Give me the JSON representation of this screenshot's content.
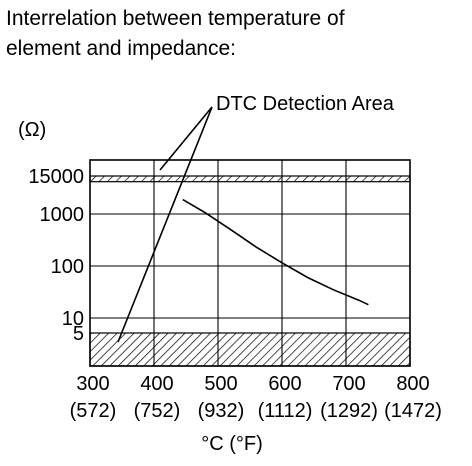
{
  "title": {
    "line1": "Interrelation between temperature of",
    "line2": "element and impedance:"
  },
  "chart_data": {
    "type": "line",
    "ylabel": "(Ω)",
    "xlabel": "°C (°F)",
    "y_scale": "log",
    "yticks": [
      {
        "value": 5,
        "label": "5"
      },
      {
        "value": 10,
        "label": "10"
      },
      {
        "value": 100,
        "label": "100"
      },
      {
        "value": 1000,
        "label": "1000"
      },
      {
        "value": 15000,
        "label": "15000"
      }
    ],
    "xticks": [
      {
        "value": 300,
        "label": "300",
        "sub": "(572)"
      },
      {
        "value": 400,
        "label": "400",
        "sub": "(752)"
      },
      {
        "value": 500,
        "label": "500",
        "sub": "(932)"
      },
      {
        "value": 600,
        "label": "600",
        "sub": "(1112)"
      },
      {
        "value": 700,
        "label": "700",
        "sub": "(1292)"
      },
      {
        "value": 800,
        "label": "800",
        "sub": "(1472)"
      }
    ],
    "xlim": [
      300,
      800
    ],
    "series": [
      {
        "x": [
          445,
          480,
          520,
          560,
          600,
          640,
          680,
          720,
          735
        ],
        "y": [
          2800,
          1100,
          500,
          230,
          115,
          60,
          35,
          22,
          18
        ]
      }
    ],
    "detection_bands": [
      {
        "from": 10000,
        "to": 15000
      },
      {
        "from": 1,
        "to": 5
      }
    ],
    "annotation": {
      "text": "DTC Detection Area"
    }
  }
}
